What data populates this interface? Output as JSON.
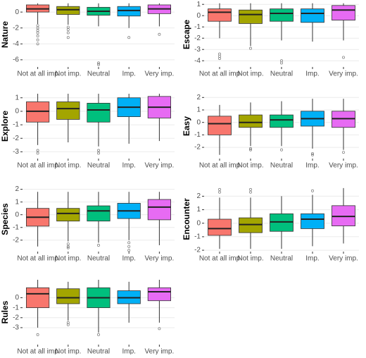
{
  "chart_data": [
    {
      "type": "boxplot",
      "ylabel": "Nature",
      "categories": [
        "Not at all imp",
        "Not imp.",
        "Neutral",
        "Imp.",
        "Very imp."
      ],
      "colors": [
        "#F8766D",
        "#A3A500",
        "#00BF7D",
        "#00B0F6",
        "#E76BF3"
      ],
      "grid": true,
      "ylim": [
        -6.9,
        1.25
      ],
      "yticks": [
        -6,
        -4,
        -2,
        0
      ],
      "boxes": [
        {
          "low": -1.5,
          "q1": 0,
          "median": 0.4,
          "q3": 0.9,
          "high": 1.1,
          "outliers": [
            -1.7,
            -2,
            -2.3,
            -2.6,
            -3,
            -3.5,
            -4
          ]
        },
        {
          "low": -1.6,
          "q1": -0.3,
          "median": 0.3,
          "q3": 0.7,
          "high": 1.1,
          "outliers": [
            -1.9,
            -2.2,
            -2.6,
            -3.2
          ]
        },
        {
          "low": -1.8,
          "q1": -0.4,
          "median": 0.1,
          "q3": 0.6,
          "high": 1.1,
          "outliers": [
            -6.4,
            -6.6
          ]
        },
        {
          "low": -2,
          "q1": -0.5,
          "median": 0.2,
          "q3": 0.7,
          "high": 1.1,
          "outliers": [
            -3.2
          ]
        },
        {
          "low": -1.8,
          "q1": -0.2,
          "median": 0.4,
          "q3": 0.9,
          "high": 1.1,
          "outliers": [
            -2.8
          ]
        }
      ]
    },
    {
      "type": "boxplot",
      "ylabel": "Escape",
      "categories": [
        "Not at all imp",
        "Not imp.",
        "Neutral",
        "Imp.",
        "Very imp."
      ],
      "colors": [
        "#F8766D",
        "#A3A500",
        "#00BF7D",
        "#00B0F6",
        "#E76BF3"
      ],
      "grid": true,
      "ylim": [
        -4.55,
        1.2
      ],
      "yticks": [
        -4,
        -3,
        -2,
        -1,
        0,
        1
      ],
      "boxes": [
        {
          "low": -2,
          "q1": -0.5,
          "median": 0.3,
          "q3": 0.6,
          "high": 1.1,
          "outliers": [
            -3.4,
            -3.6,
            -3.8
          ]
        },
        {
          "low": -2.7,
          "q1": -0.7,
          "median": 0.1,
          "q3": 0.5,
          "high": 1.1,
          "outliers": [
            -2.9
          ]
        },
        {
          "low": -2.2,
          "q1": -0.5,
          "median": 0.2,
          "q3": 0.6,
          "high": 1.1,
          "outliers": [
            -4,
            -4.2
          ]
        },
        {
          "low": -2.3,
          "q1": -0.6,
          "median": 0.2,
          "q3": 0.6,
          "high": 1.1,
          "outliers": []
        },
        {
          "low": -2.2,
          "q1": -0.4,
          "median": 0.5,
          "q3": 0.9,
          "high": 1.1,
          "outliers": [
            -3.7
          ]
        }
      ]
    },
    {
      "type": "boxplot",
      "ylabel": "Explore",
      "categories": [
        "Not at all imp",
        "Not imp.",
        "Neutral",
        "Imp.",
        "Very imp."
      ],
      "colors": [
        "#F8766D",
        "#A3A500",
        "#00BF7D",
        "#00B0F6",
        "#E76BF3"
      ],
      "grid": true,
      "ylim": [
        -3.5,
        1.3
      ],
      "yticks": [
        -3,
        -2,
        -1,
        0,
        1
      ],
      "boxes": [
        {
          "low": -2.5,
          "q1": -0.8,
          "median": 0,
          "q3": 0.7,
          "high": 1.3,
          "outliers": [
            -2.9,
            -3.1
          ]
        },
        {
          "low": -2.3,
          "q1": -0.6,
          "median": 0.2,
          "q3": 0.7,
          "high": 1.3,
          "outliers": []
        },
        {
          "low": -2.6,
          "q1": -0.8,
          "median": 0.1,
          "q3": 0.6,
          "high": 1.3,
          "outliers": [
            -2.9,
            -3.1
          ]
        },
        {
          "low": -2.4,
          "q1": -0.4,
          "median": 0.3,
          "q3": 1,
          "high": 1.3,
          "outliers": []
        },
        {
          "low": -2.2,
          "q1": -0.5,
          "median": 0.3,
          "q3": 1.1,
          "high": 1.3,
          "outliers": []
        }
      ]
    },
    {
      "type": "boxplot",
      "ylabel": "Easy",
      "categories": [
        "Not at all imp",
        "Not imp.",
        "Neutral",
        "Imp.",
        "Very imp."
      ],
      "colors": [
        "#F8766D",
        "#A3A500",
        "#00BF7D",
        "#00B0F6",
        "#E76BF3"
      ],
      "grid": true,
      "ylim": [
        -2.9,
        2.3
      ],
      "yticks": [
        -2,
        -1,
        0,
        1,
        2
      ],
      "boxes": [
        {
          "low": -2.6,
          "q1": -1,
          "median": -0.1,
          "q3": 0.5,
          "high": 1.4,
          "outliers": []
        },
        {
          "low": -1.9,
          "q1": -0.4,
          "median": 0,
          "q3": 0.6,
          "high": 1.6,
          "outliers": [
            -2.1,
            -2.2
          ]
        },
        {
          "low": -1.9,
          "q1": -0.4,
          "median": 0.2,
          "q3": 0.6,
          "high": 1.7,
          "outliers": [
            -2.2
          ]
        },
        {
          "low": -2.1,
          "q1": -0.3,
          "median": 0.3,
          "q3": 0.9,
          "high": 1.9,
          "outliers": [
            -2.5,
            -2.6
          ]
        },
        {
          "low": -2.2,
          "q1": -0.4,
          "median": 0.3,
          "q3": 0.9,
          "high": 1.9,
          "outliers": [
            -2.4
          ]
        }
      ]
    },
    {
      "type": "boxplot",
      "ylabel": "Species",
      "categories": [
        "Not at all imp",
        "Not imp.",
        "Neutral",
        "Imp.",
        "Very imp."
      ],
      "colors": [
        "#F8766D",
        "#A3A500",
        "#00BF7D",
        "#00B0F6",
        "#E76BF3"
      ],
      "grid": true,
      "ylim": [
        -2.9,
        2.2
      ],
      "yticks": [
        -2,
        -1,
        0,
        1,
        2
      ],
      "boxes": [
        {
          "low": -2.5,
          "q1": -0.9,
          "median": -0.2,
          "q3": 0.5,
          "high": 1.8,
          "outliers": []
        },
        {
          "low": -2.1,
          "q1": -0.5,
          "median": 0.1,
          "q3": 0.5,
          "high": 1.8,
          "outliers": [
            -2.3,
            -2.5,
            -2.6
          ]
        },
        {
          "low": -2.2,
          "q1": -0.5,
          "median": 0.3,
          "q3": 0.7,
          "high": 1.8,
          "outliers": [
            -2.4
          ]
        },
        {
          "low": -2,
          "q1": -0.3,
          "median": 0.3,
          "q3": 0.9,
          "high": 1.8,
          "outliers": [
            -2.2,
            -2.5,
            -2.8
          ]
        },
        {
          "low": -2.4,
          "q1": -0.4,
          "median": 0.6,
          "q3": 1.2,
          "high": 1.8,
          "outliers": []
        }
      ]
    },
    {
      "type": "boxplot",
      "ylabel": "Encounter",
      "categories": [
        "Not at all imp",
        "Not imp.",
        "Neutral",
        "Imp.",
        "Very imp."
      ],
      "colors": [
        "#F8766D",
        "#A3A500",
        "#00BF7D",
        "#00B0F6",
        "#E76BF3"
      ],
      "grid": true,
      "ylim": [
        -2.1,
        2.7
      ],
      "yticks": [
        -2,
        -1,
        0,
        1,
        2
      ],
      "boxes": [
        {
          "low": -1.9,
          "q1": -0.9,
          "median": -0.4,
          "q3": 0.3,
          "high": 1.9,
          "outliers": [
            2.3,
            2.5
          ]
        },
        {
          "low": -1.9,
          "q1": -0.7,
          "median": -0.1,
          "q3": 0.4,
          "high": 1.9,
          "outliers": [
            2.3,
            2.5
          ]
        },
        {
          "low": -1.9,
          "q1": -0.6,
          "median": 0.1,
          "q3": 0.7,
          "high": 2,
          "outliers": []
        },
        {
          "low": -1.7,
          "q1": -0.4,
          "median": 0.3,
          "q3": 0.7,
          "high": 2.1,
          "outliers": [
            2.4
          ]
        },
        {
          "low": -1.5,
          "q1": -0.2,
          "median": 0.5,
          "q3": 1.3,
          "high": 2.6,
          "outliers": []
        }
      ]
    },
    {
      "type": "boxplot",
      "ylabel": "Rules",
      "categories": [
        "Not at all imp",
        "Not imp.",
        "Neutral",
        "Imp.",
        "Very imp."
      ],
      "colors": [
        "#F8766D",
        "#A3A500",
        "#00BF7D",
        "#00B0F6",
        "#E76BF3"
      ],
      "grid": true,
      "ylim": [
        -4.7,
        1.8
      ],
      "yticks": [
        -3,
        -2,
        -1,
        0
      ],
      "boxes": [
        {
          "low": -3,
          "q1": -1,
          "median": 0.4,
          "q3": 1,
          "high": 1.8,
          "outliers": [
            -3.7
          ]
        },
        {
          "low": -2.3,
          "q1": -0.6,
          "median": 0,
          "q3": 0.9,
          "high": 1.6,
          "outliers": [
            -2.5,
            -2.7
          ]
        },
        {
          "low": -3.5,
          "q1": -1,
          "median": 0,
          "q3": 1,
          "high": 1.8,
          "outliers": [
            -3.7
          ]
        },
        {
          "low": -2.5,
          "q1": -0.6,
          "median": 0,
          "q3": 0.7,
          "high": 1.6,
          "outliers": []
        },
        {
          "low": -2.5,
          "q1": -0.3,
          "median": 0.6,
          "q3": 1,
          "high": 1.8,
          "outliers": [
            -3.1
          ]
        }
      ]
    }
  ]
}
